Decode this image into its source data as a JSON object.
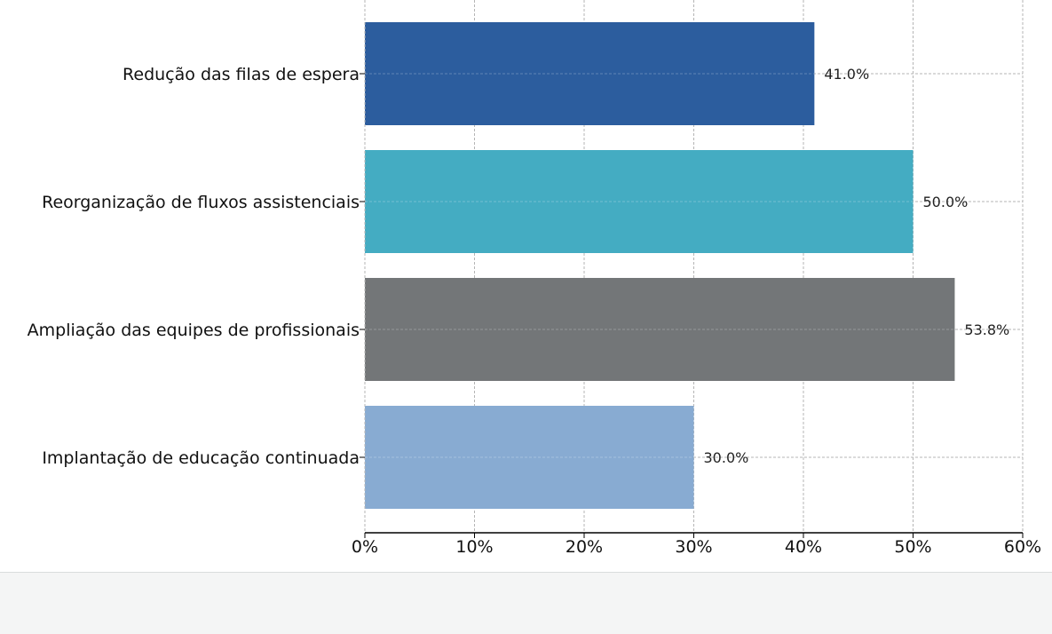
{
  "chart_data": {
    "type": "bar",
    "orientation": "horizontal",
    "title": "",
    "xlabel": "",
    "ylabel": "",
    "categories": [
      "Redução das filas de espera",
      "Reorganização de fluxos assistenciais",
      "Ampliação das equipes de profissionais",
      "Implantação de educação continuada"
    ],
    "values": [
      41.0,
      50.0,
      53.8,
      30.0
    ],
    "data_labels": [
      "41.0%",
      "50.0%",
      "53.8%",
      "30.0%"
    ],
    "colors": [
      "#2c5d9e",
      "#44acc2",
      "#737678",
      "#88abd2"
    ],
    "xlim": [
      0,
      60
    ],
    "xticks": [
      0,
      10,
      20,
      30,
      40,
      50,
      60
    ],
    "xtick_labels": [
      "0%",
      "10%",
      "20%",
      "30%",
      "40%",
      "50%",
      "60%"
    ],
    "grid": true,
    "legend": "none"
  },
  "colors": {
    "grid": "#b5b5b5",
    "axis": "#000000",
    "footer_bg": "#f4f5f5"
  }
}
